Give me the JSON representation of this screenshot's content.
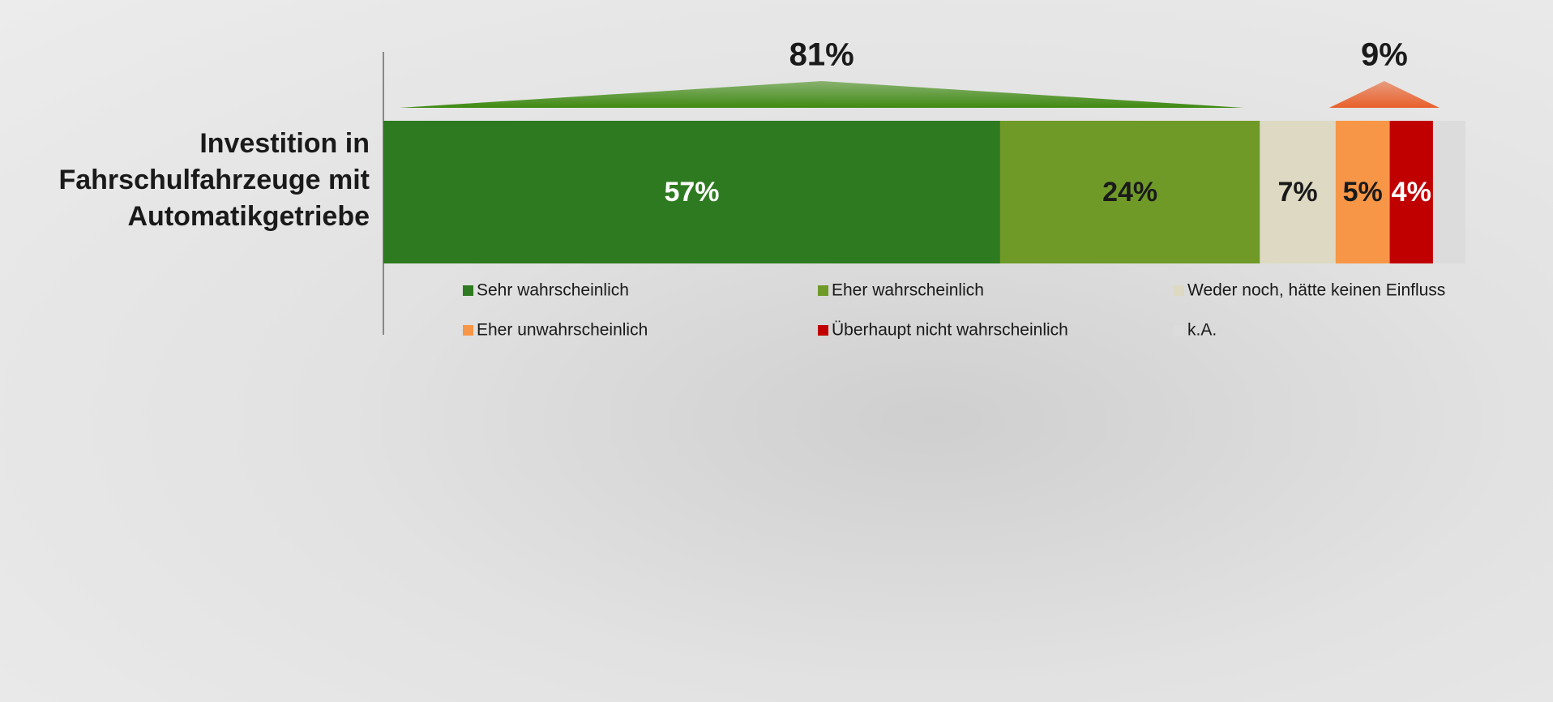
{
  "chart_data": {
    "type": "stacked-bar-horizontal",
    "categories": [
      "Investition in Fahrschulfahrzeuge mit Automatikgetriebe"
    ],
    "series": [
      {
        "name": "Sehr wahrscheinlich",
        "color": "#2e7a20",
        "label_color": "#ffffff",
        "values": [
          57
        ],
        "value_labels": [
          "57%"
        ]
      },
      {
        "name": "Eher wahrscheinlich",
        "color": "#6f9a28",
        "label_color": "#1a1a1a",
        "values": [
          24
        ],
        "value_labels": [
          "24%"
        ]
      },
      {
        "name": "Weder noch, hätte keinen Einfluss",
        "color": "#ddd9c3",
        "label_color": "#1a1a1a",
        "values": [
          7
        ],
        "value_labels": [
          "7%"
        ]
      },
      {
        "name": "Eher unwahrscheinlich",
        "color": "#f79646",
        "label_color": "#1a1a1a",
        "values": [
          5
        ],
        "value_labels": [
          "5%"
        ]
      },
      {
        "name": "Überhaupt nicht wahrscheinlich",
        "color": "#c00000",
        "label_color": "#ffffff",
        "values": [
          4
        ],
        "value_labels": [
          "4%"
        ]
      },
      {
        "name": "k.A.",
        "color": "#dcdcdc",
        "label_color": "#1a1a1a",
        "values": [
          3
        ],
        "value_labels": [
          null
        ]
      }
    ],
    "annotations": [
      {
        "label": "81%",
        "value": 81,
        "color": "#3f8a12"
      },
      {
        "label": "9%",
        "value": 9,
        "color": "#e8602a"
      }
    ]
  }
}
